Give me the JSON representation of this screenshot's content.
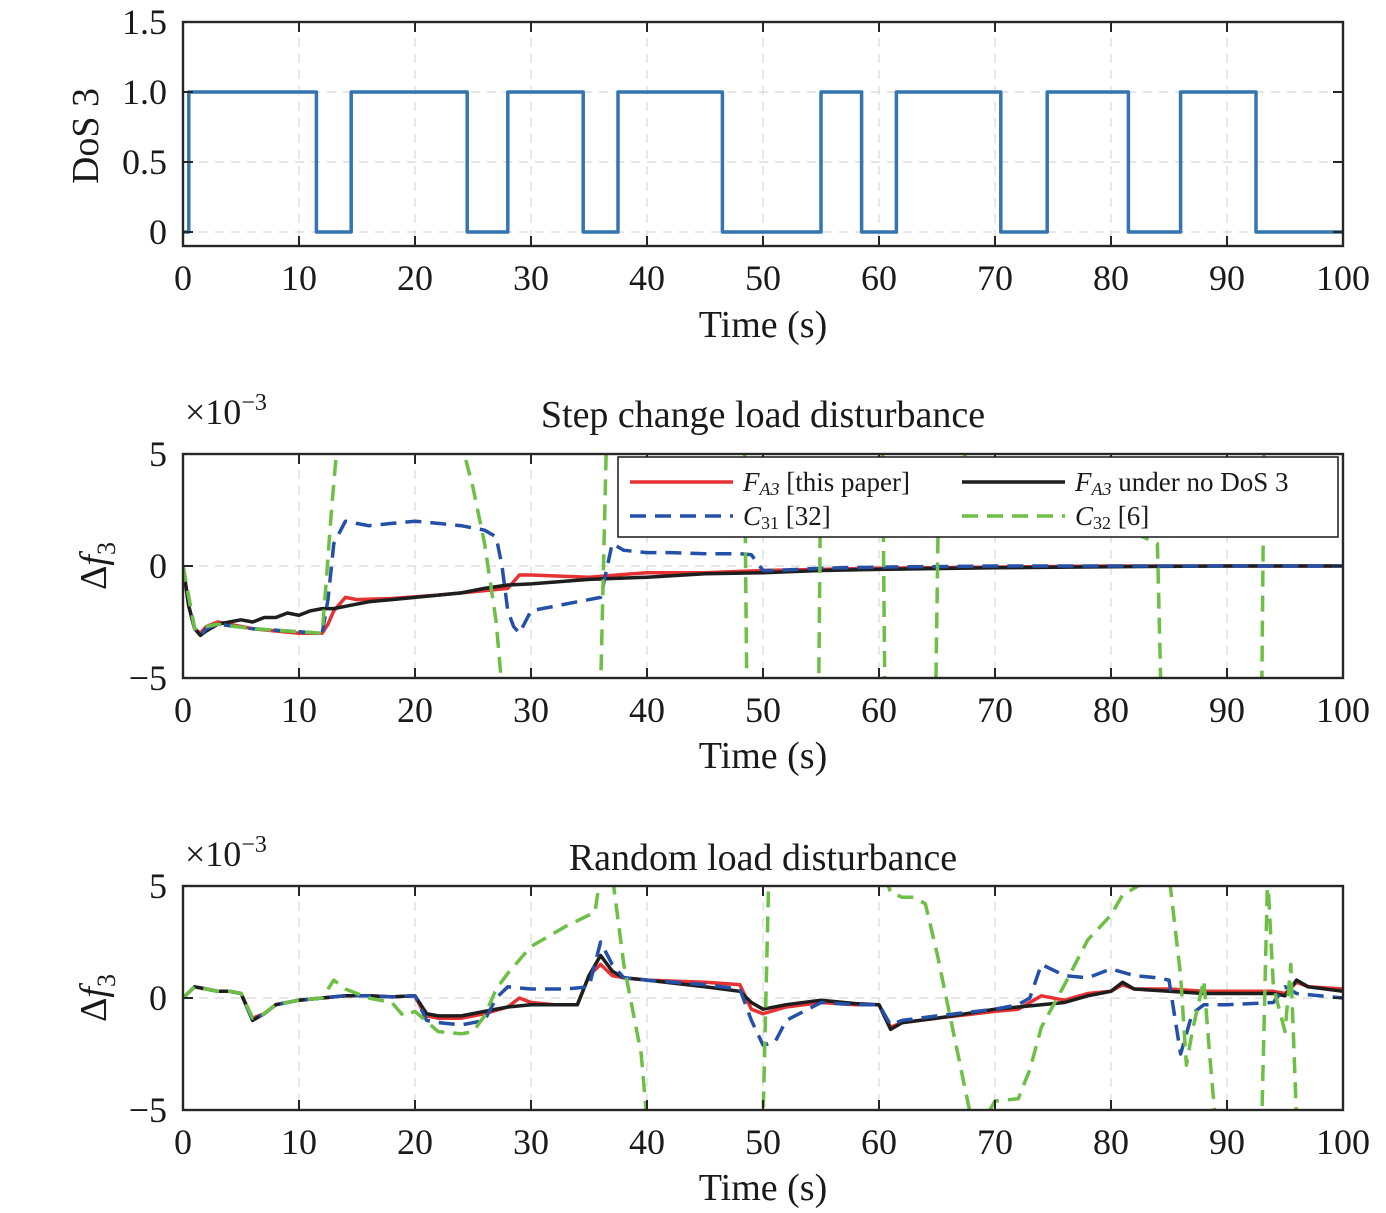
{
  "colors": {
    "dos": "#3475b0",
    "fa3": "#e63232",
    "fa3_nodos": "#1e1e1e",
    "c31": "#2450a8",
    "c32": "#6dbf45"
  },
  "chart_data": [
    {
      "id": "dos",
      "type": "line",
      "title": "",
      "xlabel": "Time (s)",
      "ylabel": "DoS 3",
      "xlim": [
        0,
        100
      ],
      "ylim": [
        -0.1,
        1.5
      ],
      "xticks": [
        0,
        10,
        20,
        30,
        40,
        50,
        60,
        70,
        80,
        90,
        100
      ],
      "xtick_labels": [
        "0",
        "10",
        "20",
        "30",
        "40",
        "50",
        "60",
        "70",
        "80",
        "90",
        "100"
      ],
      "yticks": [
        0,
        0.5,
        1.0,
        1.5
      ],
      "ytick_labels": [
        "0",
        "0.5",
        "1.0",
        "1.5"
      ],
      "grid": true,
      "series": [
        {
          "style": "solid",
          "x": [
            0,
            0.5,
            0.5,
            11.5,
            11.5,
            14.5,
            14.5,
            24.5,
            24.5,
            28,
            28,
            34.5,
            34.5,
            37.5,
            37.5,
            46.5,
            46.5,
            55,
            55,
            58.5,
            58.5,
            61.5,
            61.5,
            70.5,
            70.5,
            74.5,
            74.5,
            81.5,
            81.5,
            86,
            86,
            92.5,
            92.5,
            100
          ],
          "y": [
            0,
            0,
            1,
            1,
            0,
            0,
            1,
            1,
            0,
            0,
            1,
            1,
            0,
            0,
            1,
            1,
            0,
            0,
            1,
            1,
            0,
            0,
            1,
            1,
            0,
            0,
            1,
            1,
            0,
            0,
            1,
            1,
            0,
            0
          ]
        }
      ]
    },
    {
      "id": "step",
      "type": "line",
      "title": "Step change load disturbance",
      "exponent": "×10",
      "exponent_power": "−3",
      "xlabel": "Time (s)",
      "ylabel_symbol": "Δ",
      "ylabel_var": "f",
      "ylabel_sub": "3",
      "xlim": [
        0,
        100
      ],
      "ylim": [
        -5,
        5
      ],
      "xticks": [
        0,
        10,
        20,
        30,
        40,
        50,
        60,
        70,
        80,
        90,
        100
      ],
      "xtick_labels": [
        "0",
        "10",
        "20",
        "30",
        "40",
        "50",
        "60",
        "70",
        "80",
        "90",
        "100"
      ],
      "yticks": [
        -5,
        0,
        5
      ],
      "ytick_labels": [
        "−5",
        "0",
        "5"
      ],
      "grid": true,
      "legend": "top-right",
      "series": [
        {
          "name_main": "F",
          "name_sub": "A3",
          "name_rest": " [this paper]",
          "style": "solid",
          "x": [
            0,
            0.5,
            1,
            1.5,
            2,
            3,
            4,
            6,
            8,
            10,
            11,
            12,
            12.5,
            13,
            14,
            15,
            18,
            22,
            26,
            27,
            28,
            29,
            30,
            35,
            40,
            45,
            50,
            55,
            60,
            70,
            80,
            90,
            100
          ],
          "y": [
            0,
            -1.8,
            -2.8,
            -3.0,
            -2.7,
            -2.5,
            -2.6,
            -2.8,
            -2.9,
            -3.0,
            -3.0,
            -3.0,
            -2.6,
            -2.0,
            -1.4,
            -1.5,
            -1.45,
            -1.3,
            -1.1,
            -1.05,
            -1.0,
            -0.4,
            -0.4,
            -0.5,
            -0.3,
            -0.3,
            -0.2,
            -0.15,
            -0.1,
            -0.05,
            0,
            0,
            0
          ]
        },
        {
          "name_main": "F",
          "name_sub": "A3",
          "name_rest": " under no DoS 3",
          "style": "solid",
          "x": [
            0,
            0.5,
            1,
            1.5,
            2,
            3,
            4,
            5,
            6,
            7,
            8,
            9,
            10,
            11,
            12,
            13,
            14,
            16,
            18,
            20,
            22,
            24,
            26,
            28,
            30,
            35,
            40,
            45,
            50,
            55,
            60,
            70,
            80,
            90,
            100
          ],
          "y": [
            0,
            -1.8,
            -2.8,
            -3.1,
            -2.9,
            -2.6,
            -2.5,
            -2.4,
            -2.5,
            -2.3,
            -2.3,
            -2.1,
            -2.2,
            -2.0,
            -1.9,
            -1.9,
            -1.8,
            -1.6,
            -1.5,
            -1.4,
            -1.3,
            -1.2,
            -1.0,
            -0.85,
            -0.8,
            -0.6,
            -0.5,
            -0.35,
            -0.3,
            -0.2,
            -0.15,
            -0.08,
            -0.03,
            0,
            0
          ]
        },
        {
          "name_main": "C",
          "name_sub": "31",
          "name_rest": " [32]",
          "style": "dashed",
          "x": [
            0,
            1,
            1.5,
            2,
            3,
            6,
            9,
            12,
            12.5,
            13,
            14,
            16,
            18,
            20,
            22,
            24,
            26,
            27,
            27.5,
            28,
            28.5,
            29,
            30,
            32,
            34,
            36,
            36.5,
            37,
            38,
            40,
            42,
            45,
            48,
            49,
            50,
            51,
            55,
            60,
            70,
            80,
            90,
            100
          ],
          "y": [
            0,
            -2.8,
            -3.1,
            -2.8,
            -2.6,
            -2.8,
            -2.9,
            -3.0,
            -1.5,
            1.0,
            2.0,
            1.8,
            1.9,
            2.0,
            1.9,
            1.8,
            1.6,
            1.3,
            0,
            -2.0,
            -2.7,
            -3.0,
            -2.0,
            -1.8,
            -1.6,
            -1.4,
            -0.2,
            1.0,
            0.7,
            0.6,
            0.6,
            0.55,
            0.55,
            0.5,
            -0.2,
            -0.2,
            -0.1,
            -0.05,
            0,
            0,
            0,
            0
          ]
        },
        {
          "name_main": "C",
          "name_sub": "32",
          "name_rest": " [6]",
          "style": "dashed",
          "x": [
            0,
            1,
            2,
            3,
            6,
            9,
            12,
            12.3,
            12.8,
            13.3,
            24,
            25,
            26,
            27,
            27.5,
            36,
            36.5,
            48.4,
            48.6,
            54.8,
            55,
            60.3,
            60.5,
            64.9,
            65.2,
            84,
            84.3,
            93,
            93.2,
            100
          ],
          "y": [
            0,
            -2.8,
            -2.7,
            -2.6,
            -2.8,
            -2.9,
            -3.0,
            -1.0,
            2.5,
            5.5,
            5.5,
            3.5,
            1.0,
            -2.5,
            -5.5,
            -5.5,
            5.5,
            5.5,
            -5.5,
            -5.5,
            5.5,
            5.5,
            -5.5,
            -5.5,
            5.5,
            1.0,
            -5.5,
            -5.5,
            5.5,
            5.5
          ]
        }
      ]
    },
    {
      "id": "random",
      "type": "line",
      "title": "Random load disturbance",
      "exponent": "×10",
      "exponent_power": "−3",
      "xlabel": "Time (s)",
      "ylabel_symbol": "Δ",
      "ylabel_var": "f",
      "ylabel_sub": "3",
      "xlim": [
        0,
        100
      ],
      "ylim": [
        -5,
        5
      ],
      "xticks": [
        0,
        10,
        20,
        30,
        40,
        50,
        60,
        70,
        80,
        90,
        100
      ],
      "xtick_labels": [
        "0",
        "10",
        "20",
        "30",
        "40",
        "50",
        "60",
        "70",
        "80",
        "90",
        "100"
      ],
      "yticks": [
        -5,
        0,
        5
      ],
      "ytick_labels": [
        "−5",
        "0",
        "5"
      ],
      "grid": true,
      "series": [
        {
          "style": "solid",
          "x": [
            0,
            1,
            2,
            3,
            4,
            5,
            6,
            7,
            8,
            10,
            12,
            14,
            16,
            18,
            20,
            20.5,
            21,
            22,
            24,
            26,
            28,
            29,
            30,
            32,
            34,
            35,
            36,
            37,
            38,
            40,
            45,
            48,
            49,
            50,
            52,
            55,
            58,
            60,
            61,
            62,
            65,
            70,
            72,
            74,
            76,
            78,
            80,
            81,
            82,
            85,
            88,
            90,
            94,
            95,
            96,
            97,
            100
          ],
          "y": [
            0,
            0.5,
            0.4,
            0.3,
            0.3,
            0.2,
            -0.9,
            -0.7,
            -0.3,
            -0.1,
            0,
            0.1,
            0.1,
            0.05,
            0.1,
            -0.4,
            -0.8,
            -0.9,
            -0.9,
            -0.7,
            -0.4,
            0,
            -0.2,
            -0.3,
            -0.3,
            1.0,
            1.5,
            1.0,
            0.9,
            0.8,
            0.7,
            0.6,
            -0.5,
            -0.7,
            -0.4,
            -0.2,
            -0.3,
            -0.3,
            -1.3,
            -1.1,
            -0.9,
            -0.6,
            -0.5,
            0.1,
            -0.1,
            0.2,
            0.3,
            0.6,
            0.4,
            0.4,
            0.3,
            0.3,
            0.3,
            0.2,
            0.7,
            0.5,
            0.4
          ]
        },
        {
          "style": "solid",
          "x": [
            0,
            1,
            2,
            3,
            4,
            5,
            6,
            7,
            8,
            10,
            12,
            14,
            16,
            18,
            20,
            20.5,
            21,
            22,
            24,
            26,
            28,
            30,
            32,
            34,
            35,
            36,
            37,
            38,
            40,
            45,
            48,
            49,
            50,
            52,
            55,
            58,
            60,
            61,
            62,
            65,
            70,
            72,
            74,
            76,
            78,
            80,
            81,
            82,
            85,
            88,
            90,
            94,
            95,
            96,
            97,
            100
          ],
          "y": [
            0,
            0.5,
            0.4,
            0.3,
            0.3,
            0.2,
            -1.0,
            -0.7,
            -0.3,
            -0.1,
            0,
            0.1,
            0.1,
            0.05,
            0.1,
            -0.3,
            -0.7,
            -0.8,
            -0.8,
            -0.6,
            -0.4,
            -0.3,
            -0.3,
            -0.3,
            1.0,
            1.9,
            1.2,
            0.9,
            0.8,
            0.5,
            0.3,
            -0.2,
            -0.5,
            -0.3,
            -0.1,
            -0.25,
            -0.3,
            -1.4,
            -1.1,
            -0.9,
            -0.5,
            -0.4,
            -0.3,
            -0.2,
            0.1,
            0.3,
            0.7,
            0.4,
            0.3,
            0.2,
            0.2,
            0.2,
            0.1,
            0.8,
            0.5,
            0.3
          ]
        },
        {
          "style": "dashed",
          "x": [
            0,
            1,
            2,
            3,
            4,
            5,
            6,
            7,
            8,
            10,
            12,
            14,
            16,
            18,
            20,
            21,
            22,
            24,
            26,
            27,
            28,
            30,
            33,
            35,
            36,
            37,
            38,
            40,
            45,
            48,
            49,
            50,
            51,
            52,
            55,
            58,
            60,
            61,
            62,
            65,
            70,
            72,
            73,
            74,
            76,
            78,
            80,
            82,
            84,
            85,
            86,
            87,
            88,
            90,
            94,
            95,
            96,
            100
          ],
          "y": [
            0,
            0.5,
            0.4,
            0.3,
            0.3,
            0.2,
            -1.0,
            -0.7,
            -0.3,
            -0.1,
            0,
            0.1,
            0.1,
            0.05,
            0.1,
            -1.0,
            -1.1,
            -1.2,
            -1.0,
            0,
            0.5,
            0.4,
            0.4,
            0.5,
            2.5,
            1.5,
            0.9,
            0.8,
            0.6,
            0.4,
            -1.0,
            -2.1,
            -2.0,
            -1.0,
            -0.2,
            -0.3,
            -0.3,
            -1.2,
            -1.0,
            -0.8,
            -0.5,
            -0.3,
            0,
            1.5,
            1.0,
            0.9,
            1.3,
            1.0,
            0.9,
            0.8,
            -2.5,
            -0.7,
            -0.3,
            -0.3,
            -0.2,
            0.5,
            0.2,
            0
          ]
        },
        {
          "style": "dashed",
          "x": [
            0,
            1,
            2,
            3,
            4,
            5,
            6,
            7,
            8,
            10,
            12,
            13,
            14,
            16,
            18,
            19,
            20,
            22,
            24,
            25,
            26,
            27,
            28,
            30,
            33,
            35,
            35.5,
            36,
            37,
            38,
            39.5,
            40,
            48.5,
            49,
            49.5,
            50,
            50.5,
            51,
            51.5,
            60.5,
            61,
            62,
            63,
            64,
            65,
            66,
            67,
            68,
            69,
            70,
            72,
            73,
            74,
            76,
            78,
            80,
            81,
            84,
            84.3,
            85,
            86,
            86.5,
            87,
            88,
            88.5,
            89,
            92,
            93,
            93.5,
            94,
            95,
            95.5,
            96,
            100
          ],
          "y": [
            0,
            0.5,
            0.4,
            0.3,
            0.3,
            0.2,
            -0.9,
            -0.7,
            -0.3,
            -0.1,
            0,
            0.8,
            0.4,
            0,
            -0.2,
            -0.8,
            -0.6,
            -1.5,
            -1.6,
            -1.5,
            -0.8,
            0.4,
            1.1,
            2.3,
            3.2,
            3.7,
            3.8,
            5.5,
            5.5,
            1.5,
            -2.5,
            -5.5,
            -5.5,
            -5.5,
            -5.5,
            -5.5,
            5.5,
            5.5,
            5.5,
            5.5,
            4.7,
            4.5,
            4.5,
            4.2,
            2.0,
            -0.5,
            -3.0,
            -5.5,
            -5.5,
            -4.6,
            -4.5,
            -3.2,
            -1.3,
            0.6,
            2.6,
            3.7,
            4.6,
            5.5,
            5.5,
            5.5,
            1.0,
            -3.0,
            -1.5,
            0.8,
            -2.5,
            -5.5,
            -5.5,
            -5.5,
            5.5,
            0.5,
            -1.5,
            1.5,
            -5.5,
            -5.5
          ]
        }
      ]
    }
  ]
}
